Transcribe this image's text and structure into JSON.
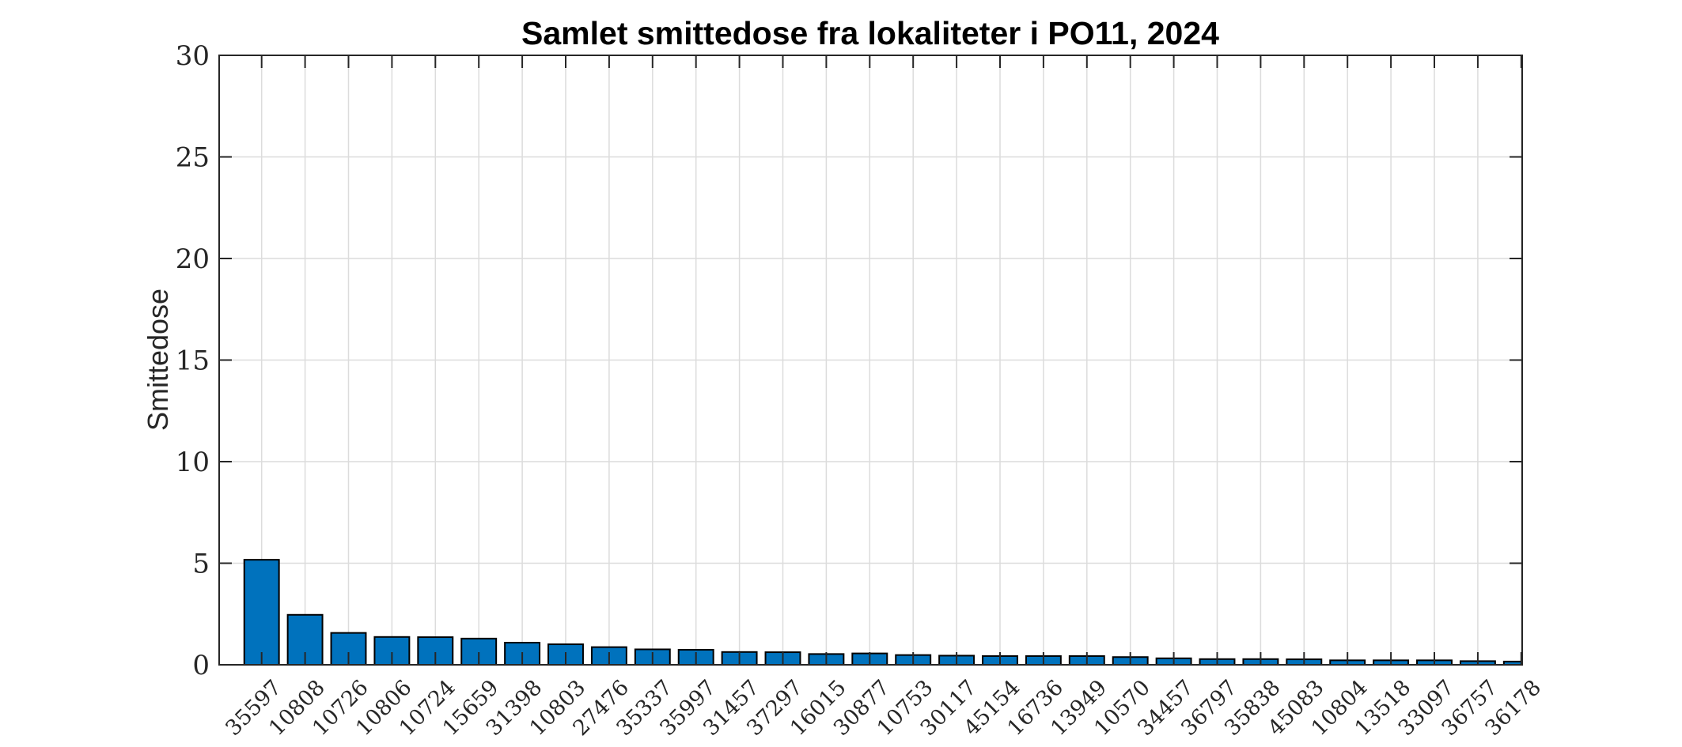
{
  "chart_data": {
    "type": "bar",
    "title": "Samlet smittedose fra lokaliteter i PO11, 2024",
    "xlabel": "",
    "ylabel": "Smittedose",
    "ylim": [
      0,
      30
    ],
    "yticks": [
      0,
      5,
      10,
      15,
      20,
      25,
      30
    ],
    "grid": true,
    "legend": null,
    "bar_color": "#0072BD",
    "categories": [
      "35597",
      "10808",
      "10726",
      "10806",
      "10724",
      "15659",
      "31398",
      "10803",
      "27476",
      "35337",
      "35997",
      "31457",
      "37297",
      "16015",
      "30877",
      "10753",
      "30117",
      "45154",
      "16736",
      "13949",
      "10570",
      "34457",
      "36797",
      "35838",
      "45083",
      "10804",
      "13518",
      "33097",
      "36757",
      "36178"
    ],
    "values": [
      5.17,
      2.46,
      1.57,
      1.37,
      1.36,
      1.29,
      1.09,
      1.01,
      0.87,
      0.76,
      0.74,
      0.63,
      0.62,
      0.53,
      0.56,
      0.48,
      0.45,
      0.43,
      0.43,
      0.43,
      0.38,
      0.32,
      0.28,
      0.28,
      0.27,
      0.22,
      0.22,
      0.22,
      0.18,
      0.16
    ]
  }
}
